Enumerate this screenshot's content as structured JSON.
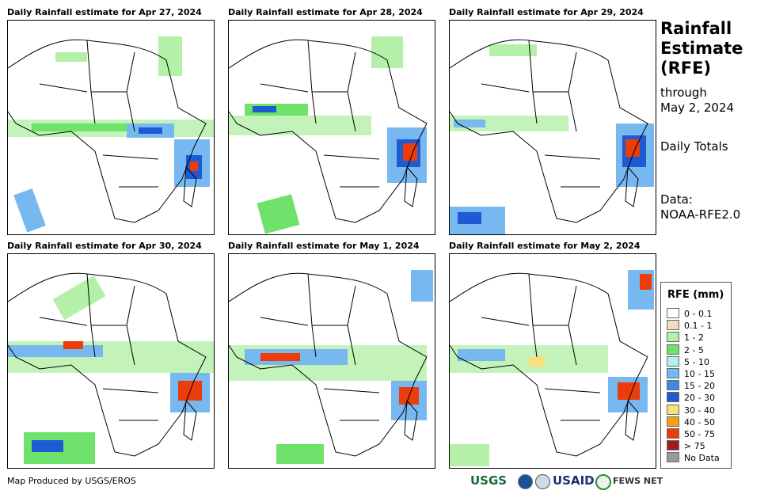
{
  "panels": [
    {
      "title": "Daily Rainfall estimate for Apr 27, 2024"
    },
    {
      "title": "Daily Rainfall estimate for Apr 28, 2024"
    },
    {
      "title": "Daily Rainfall estimate for Apr 29, 2024"
    },
    {
      "title": "Daily Rainfall estimate for Apr 30, 2024"
    },
    {
      "title": "Daily Rainfall estimate for May 1, 2024"
    },
    {
      "title": "Daily Rainfall estimate for May 2, 2024"
    }
  ],
  "sidebar": {
    "title_line1": "Rainfall",
    "title_line2": "Estimate",
    "title_line3": "(RFE)",
    "through_label": "through",
    "through_date": "May 2, 2024",
    "totals_label": "Daily Totals",
    "data_label": "Data:",
    "data_source": "NOAA-RFE2.0"
  },
  "legend": {
    "title": "RFE (mm)",
    "items": [
      {
        "label": "0 - 0.1",
        "color": "#ffffff"
      },
      {
        "label": "0.1 - 1",
        "color": "#f2dcc3"
      },
      {
        "label": "1 - 2",
        "color": "#b4f0a8"
      },
      {
        "label": "2 - 5",
        "color": "#6ee26a"
      },
      {
        "label": "5 - 10",
        "color": "#b4f0f0"
      },
      {
        "label": "10 - 15",
        "color": "#78b8f0"
      },
      {
        "label": "15 - 20",
        "color": "#3c8ce6"
      },
      {
        "label": "20 - 30",
        "color": "#1e5ad2"
      },
      {
        "label": "30 - 40",
        "color": "#fade78"
      },
      {
        "label": "40 - 50",
        "color": "#f5a014"
      },
      {
        "label": "50 - 75",
        "color": "#eb3c0a"
      },
      {
        "label": "> 75",
        "color": "#a01e1e"
      },
      {
        "label": "No Data",
        "color": "#999999"
      }
    ]
  },
  "credit": "Map Produced by USGS/EROS",
  "logos": {
    "usgs": "USGS",
    "usaid": "USAID",
    "fewsnet": "FEWS NET"
  }
}
